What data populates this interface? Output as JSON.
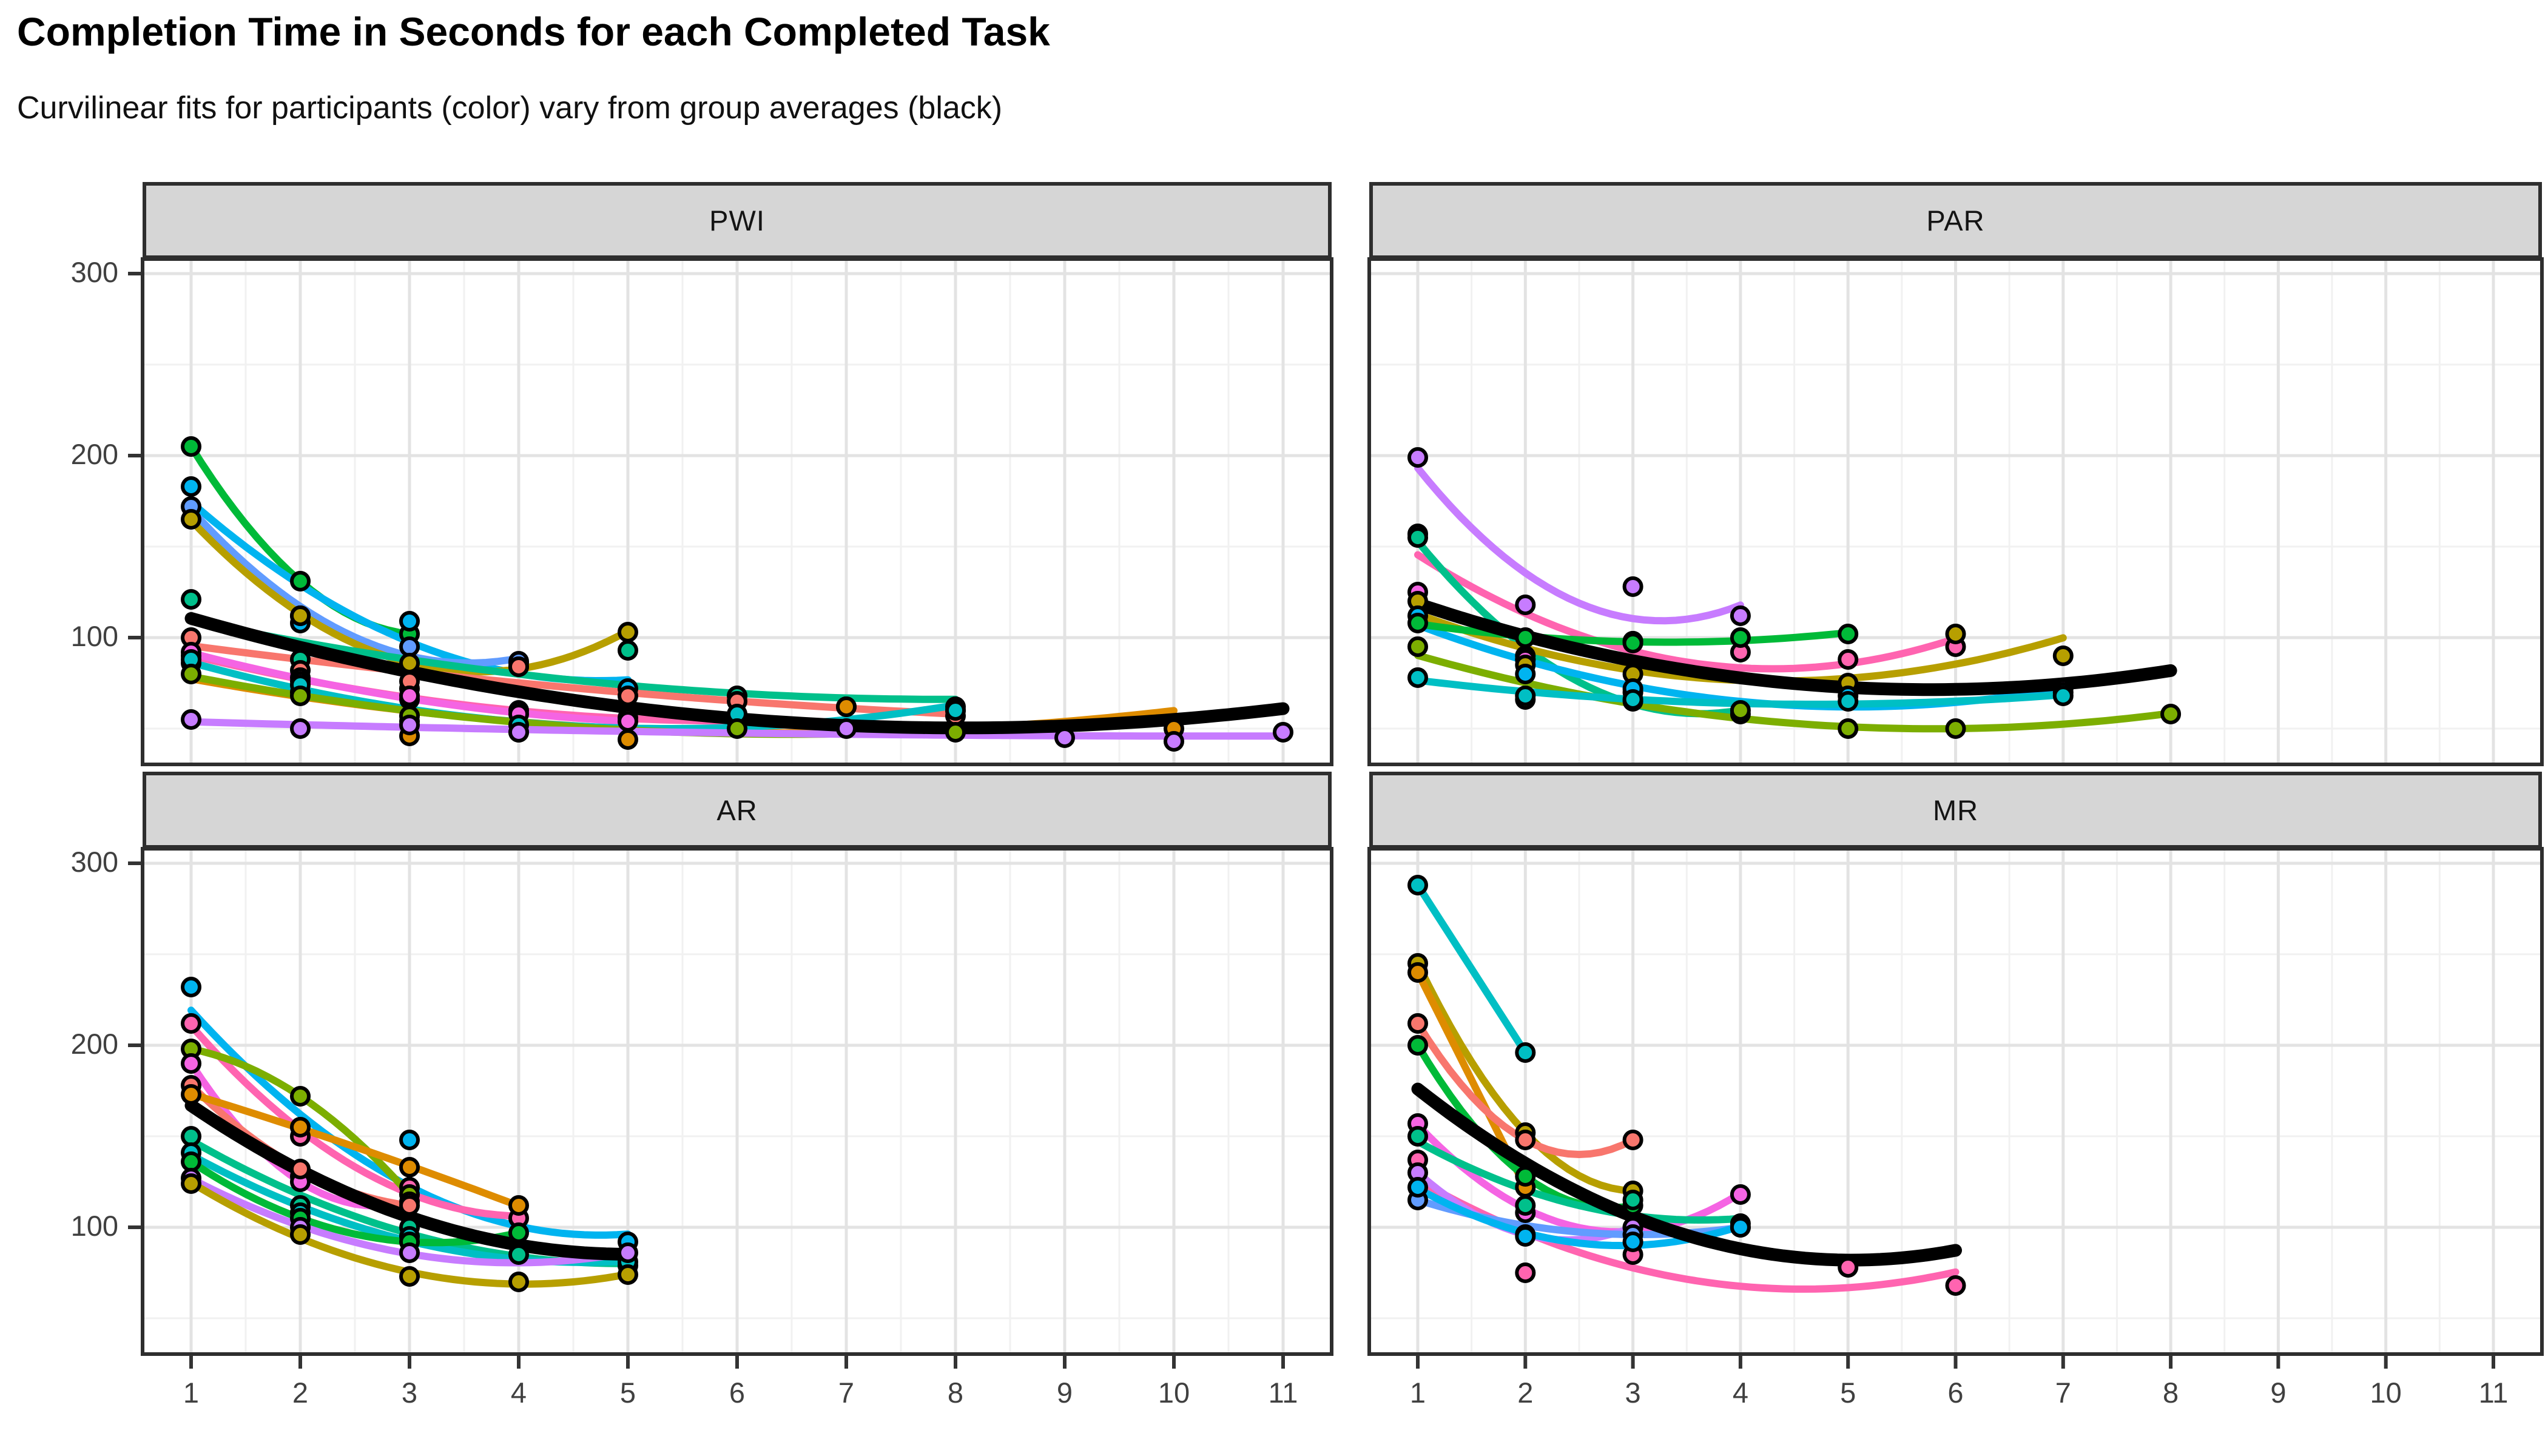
{
  "header": {
    "title": "Completion Time in Seconds for each Completed Task",
    "subtitle": "Curvilinear fits for participants (color) vary from group averages (black)"
  },
  "axes": {
    "x_ticks": [
      1,
      2,
      3,
      4,
      5,
      6,
      7,
      8,
      9,
      10,
      11
    ],
    "y_ticks": [
      100,
      200,
      300
    ],
    "x_minor": [
      1.5,
      2.5,
      3.5,
      4.5,
      5.5,
      6.5,
      7.5,
      8.5,
      9.5,
      10.5
    ],
    "y_minor": [
      50,
      150,
      250
    ]
  },
  "style_colors": {
    "strip_fill": "#d6d6d6",
    "panel_border": "#2e2e2e",
    "grid_major": "#e3e3e3",
    "grid_minor": "#f1f1f1",
    "average_line": "#000000",
    "point_outline": "#000000"
  },
  "chart_data": [
    {
      "type": "scatter",
      "title": "PWI",
      "fit": "quadratic",
      "average_label": "group average (black)",
      "series": [
        {
          "name": "green",
          "color": "#00BA38",
          "points": [
            [
              1,
              205
            ],
            [
              2,
              131
            ],
            [
              3,
              102
            ]
          ]
        },
        {
          "name": "sky",
          "color": "#00B4F0",
          "points": [
            [
              1,
              183
            ],
            [
              2,
              108
            ],
            [
              3,
              109
            ],
            [
              4,
              86
            ],
            [
              5,
              72
            ]
          ]
        },
        {
          "name": "cornflower",
          "color": "#619CFF",
          "points": [
            [
              1,
              172
            ],
            [
              2,
              112
            ],
            [
              3,
              95
            ],
            [
              4,
              87
            ]
          ]
        },
        {
          "name": "olive",
          "color": "#B79F00",
          "points": [
            [
              1,
              165
            ],
            [
              2,
              112
            ],
            [
              3,
              86
            ],
            [
              4,
              84
            ],
            [
              5,
              103
            ]
          ]
        },
        {
          "name": "emerald",
          "color": "#00C08B",
          "points": [
            [
              1,
              121
            ],
            [
              2,
              88
            ],
            [
              3,
              72
            ],
            [
              5,
              93
            ],
            [
              6,
              68
            ],
            [
              8,
              62
            ]
          ]
        },
        {
          "name": "salmon",
          "color": "#F8766D",
          "points": [
            [
              1,
              100
            ],
            [
              2,
              82
            ],
            [
              3,
              76
            ],
            [
              4,
              84
            ],
            [
              5,
              68
            ],
            [
              6,
              65
            ],
            [
              7,
              62
            ],
            [
              8,
              57
            ]
          ]
        },
        {
          "name": "pink",
          "color": "#FF64B0",
          "points": [
            [
              1,
              90
            ],
            [
              2,
              78
            ],
            [
              3,
              66
            ],
            [
              4,
              60
            ],
            [
              5,
              56
            ],
            [
              6,
              54
            ]
          ]
        },
        {
          "name": "orchid",
          "color": "#F564E3",
          "points": [
            [
              1,
              92
            ],
            [
              2,
              76
            ],
            [
              3,
              68
            ],
            [
              4,
              58
            ],
            [
              5,
              54
            ]
          ]
        },
        {
          "name": "orange",
          "color": "#DE8C00",
          "points": [
            [
              1,
              86
            ],
            [
              2,
              70
            ],
            [
              3,
              46
            ],
            [
              4,
              48
            ],
            [
              5,
              44
            ],
            [
              7,
              62
            ],
            [
              8,
              60
            ],
            [
              10,
              50
            ]
          ]
        },
        {
          "name": "cyan",
          "color": "#00BFC4",
          "points": [
            [
              1,
              88
            ],
            [
              2,
              74
            ],
            [
              3,
              54
            ],
            [
              4,
              52
            ],
            [
              6,
              58
            ],
            [
              8,
              60
            ]
          ]
        },
        {
          "name": "yellowgreen",
          "color": "#7CAE00",
          "points": [
            [
              1,
              80
            ],
            [
              2,
              68
            ],
            [
              3,
              57
            ],
            [
              6,
              50
            ],
            [
              8,
              48
            ]
          ]
        },
        {
          "name": "lavender",
          "color": "#C77CFF",
          "points": [
            [
              1,
              55
            ],
            [
              2,
              50
            ],
            [
              3,
              52
            ],
            [
              4,
              48
            ],
            [
              7,
              50
            ],
            [
              9,
              45
            ],
            [
              10,
              43
            ],
            [
              11,
              48
            ]
          ]
        }
      ]
    },
    {
      "type": "scatter",
      "title": "PAR",
      "fit": "quadratic",
      "average_label": "group average (black)",
      "series": [
        {
          "name": "lavender",
          "color": "#C77CFF",
          "points": [
            [
              1,
              199
            ],
            [
              2,
              118
            ],
            [
              3,
              128
            ],
            [
              4,
              112
            ]
          ]
        },
        {
          "name": "pink",
          "color": "#FF64B0",
          "points": [
            [
              1,
              157
            ],
            [
              2,
              90
            ],
            [
              3,
              98
            ],
            [
              4,
              92
            ],
            [
              5,
              88
            ],
            [
              6,
              95
            ]
          ]
        },
        {
          "name": "emerald",
          "color": "#00C08B",
          "points": [
            [
              1,
              155
            ],
            [
              2,
              88
            ],
            [
              3,
              70
            ],
            [
              4,
              58
            ]
          ]
        },
        {
          "name": "orchid",
          "color": "#F564E3",
          "points": [
            [
              1,
              125
            ],
            [
              2,
              88
            ],
            [
              3,
              98
            ],
            [
              5,
              72
            ],
            [
              7,
              72
            ]
          ]
        },
        {
          "name": "olive",
          "color": "#B79F00",
          "points": [
            [
              1,
              120
            ],
            [
              2,
              85
            ],
            [
              3,
              80
            ],
            [
              5,
              75
            ],
            [
              6,
              102
            ],
            [
              7,
              90
            ]
          ]
        },
        {
          "name": "sky",
          "color": "#00B4F0",
          "points": [
            [
              1,
              112
            ],
            [
              2,
              80
            ],
            [
              3,
              72
            ],
            [
              5,
              68
            ],
            [
              7,
              70
            ]
          ]
        },
        {
          "name": "green",
          "color": "#00BA38",
          "points": [
            [
              1,
              108
            ],
            [
              2,
              100
            ],
            [
              3,
              97
            ],
            [
              4,
              100
            ],
            [
              5,
              102
            ]
          ]
        },
        {
          "name": "yellowgreen",
          "color": "#7CAE00",
          "points": [
            [
              1,
              95
            ],
            [
              2,
              66
            ],
            [
              3,
              65
            ],
            [
              4,
              60
            ],
            [
              5,
              50
            ],
            [
              6,
              50
            ],
            [
              8,
              58
            ]
          ]
        },
        {
          "name": "cyan",
          "color": "#00BFC4",
          "points": [
            [
              1,
              78
            ],
            [
              2,
              68
            ],
            [
              3,
              66
            ],
            [
              5,
              65
            ],
            [
              7,
              68
            ]
          ]
        }
      ]
    },
    {
      "type": "scatter",
      "title": "AR",
      "fit": "quadratic",
      "average_label": "group average (black)",
      "series": [
        {
          "name": "sky",
          "color": "#00B4F0",
          "points": [
            [
              1,
              232
            ],
            [
              2,
              128
            ],
            [
              3,
              148
            ],
            [
              5,
              92
            ]
          ]
        },
        {
          "name": "pink",
          "color": "#FF64B0",
          "points": [
            [
              1,
              212
            ],
            [
              2,
              150
            ],
            [
              3,
              122
            ],
            [
              4,
              105
            ]
          ]
        },
        {
          "name": "yellowgreen",
          "color": "#7CAE00",
          "points": [
            [
              1,
              198
            ],
            [
              2,
              172
            ],
            [
              3,
              118
            ]
          ]
        },
        {
          "name": "orchid",
          "color": "#F564E3",
          "points": [
            [
              1,
              190
            ],
            [
              2,
              125
            ],
            [
              3,
              114
            ]
          ]
        },
        {
          "name": "salmon",
          "color": "#F8766D",
          "points": [
            [
              1,
              178
            ],
            [
              2,
              132
            ],
            [
              3,
              112
            ]
          ]
        },
        {
          "name": "orange",
          "color": "#DE8C00",
          "points": [
            [
              1,
              173
            ],
            [
              2,
              155
            ],
            [
              3,
              133
            ],
            [
              4,
              112
            ]
          ]
        },
        {
          "name": "emerald",
          "color": "#00C08B",
          "points": [
            [
              1,
              150
            ],
            [
              2,
              112
            ],
            [
              3,
              100
            ],
            [
              4,
              85
            ],
            [
              5,
              79
            ]
          ]
        },
        {
          "name": "cyan",
          "color": "#00BFC4",
          "points": [
            [
              1,
              141
            ],
            [
              2,
              108
            ],
            [
              3,
              95
            ],
            [
              5,
              81
            ]
          ]
        },
        {
          "name": "green",
          "color": "#00BA38",
          "points": [
            [
              1,
              136
            ],
            [
              2,
              105
            ],
            [
              3,
              92
            ],
            [
              4,
              97
            ]
          ]
        },
        {
          "name": "lavender",
          "color": "#C77CFF",
          "points": [
            [
              1,
              127
            ],
            [
              2,
              100
            ],
            [
              3,
              86
            ],
            [
              5,
              86
            ]
          ]
        },
        {
          "name": "olive",
          "color": "#B79F00",
          "points": [
            [
              1,
              124
            ],
            [
              2,
              96
            ],
            [
              3,
              73
            ],
            [
              4,
              70
            ],
            [
              5,
              74
            ]
          ]
        }
      ]
    },
    {
      "type": "scatter",
      "title": "MR",
      "fit": "quadratic",
      "average_label": "group average (black)",
      "series": [
        {
          "name": "cyan",
          "color": "#00BFC4",
          "points": [
            [
              1,
              288
            ],
            [
              2,
              196
            ]
          ]
        },
        {
          "name": "olive",
          "color": "#B79F00",
          "points": [
            [
              1,
              245
            ],
            [
              2,
              152
            ],
            [
              3,
              120
            ]
          ]
        },
        {
          "name": "orange",
          "color": "#DE8C00",
          "points": [
            [
              1,
              240
            ],
            [
              2,
              122
            ]
          ]
        },
        {
          "name": "salmon",
          "color": "#F8766D",
          "points": [
            [
              1,
              212
            ],
            [
              2,
              148
            ],
            [
              3,
              148
            ]
          ]
        },
        {
          "name": "green",
          "color": "#00BA38",
          "points": [
            [
              1,
              200
            ],
            [
              2,
              128
            ],
            [
              3,
              112
            ]
          ]
        },
        {
          "name": "orchid",
          "color": "#F564E3",
          "points": [
            [
              1,
              157
            ],
            [
              2,
              108
            ],
            [
              3,
              100
            ],
            [
              4,
              118
            ]
          ]
        },
        {
          "name": "emerald",
          "color": "#00C08B",
          "points": [
            [
              1,
              150
            ],
            [
              2,
              112
            ],
            [
              3,
              115
            ],
            [
              4,
              102
            ]
          ]
        },
        {
          "name": "pink",
          "color": "#FF64B0",
          "points": [
            [
              1,
              137
            ],
            [
              2,
              75
            ],
            [
              3,
              85
            ],
            [
              5,
              78
            ],
            [
              6,
              68
            ]
          ]
        },
        {
          "name": "lavender",
          "color": "#C77CFF",
          "points": [
            [
              1,
              130
            ],
            [
              2,
              96
            ],
            [
              3,
              100
            ]
          ]
        },
        {
          "name": "cornflower",
          "color": "#619CFF",
          "points": [
            [
              1,
              115
            ],
            [
              3,
              96
            ],
            [
              4,
              100
            ]
          ]
        },
        {
          "name": "sky",
          "color": "#00B4F0",
          "points": [
            [
              1,
              122
            ],
            [
              2,
              95
            ],
            [
              3,
              92
            ],
            [
              4,
              100
            ]
          ]
        }
      ]
    }
  ]
}
